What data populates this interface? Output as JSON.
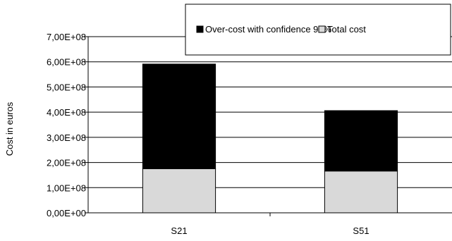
{
  "chart_data": {
    "type": "bar",
    "stacked": true,
    "title": "",
    "xlabel": "",
    "ylabel": "Cost in euros",
    "categories": [
      "S21",
      "S51"
    ],
    "series": [
      {
        "name": "Total cost",
        "color": "#d9d9d9",
        "values": [
          175000000,
          166000000
        ]
      },
      {
        "name": "Over-cost with confidence 95%",
        "color": "#000000",
        "values": [
          416000000,
          240000000
        ]
      }
    ],
    "ylim": [
      0,
      700000000
    ],
    "yticks": [
      "0,00E+00",
      "1,00E+08",
      "2,00E+08",
      "3,00E+08",
      "4,00E+08",
      "5,00E+08",
      "6,00E+08",
      "7,00E+08"
    ],
    "grid": true,
    "legend_position": "top-right"
  }
}
